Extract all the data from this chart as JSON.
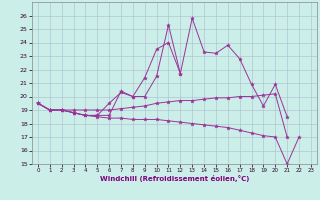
{
  "xlabel": "Windchill (Refroidissement éolien,°C)",
  "background_color": "#cceee8",
  "grid_color": "#aabbcc",
  "line_color": "#993399",
  "x_values": [
    0,
    1,
    2,
    3,
    4,
    5,
    6,
    7,
    8,
    9,
    10,
    11,
    12,
    13,
    14,
    15,
    16,
    17,
    18,
    19,
    20,
    21,
    22,
    23
  ],
  "series1": [
    19.5,
    19.0,
    19.0,
    18.8,
    18.6,
    18.6,
    19.5,
    20.3,
    20.0,
    20.0,
    21.5,
    25.3,
    21.7,
    25.8,
    23.3,
    23.2,
    23.8,
    22.8,
    20.9,
    19.3,
    20.9,
    18.5,
    null,
    null
  ],
  "series2": [
    19.5,
    19.0,
    19.0,
    18.8,
    18.6,
    18.6,
    18.6,
    20.4,
    20.0,
    21.4,
    23.5,
    24.0,
    21.7,
    null,
    null,
    null,
    null,
    null,
    null,
    null,
    null,
    null,
    null,
    null
  ],
  "series3": [
    19.5,
    19.0,
    19.0,
    19.0,
    19.0,
    19.0,
    19.0,
    19.1,
    19.2,
    19.3,
    19.5,
    19.6,
    19.7,
    19.7,
    19.8,
    19.9,
    19.9,
    20.0,
    20.0,
    20.1,
    20.2,
    17.0,
    null,
    null
  ],
  "series4": [
    19.5,
    19.0,
    19.0,
    18.8,
    18.6,
    18.5,
    18.4,
    18.4,
    18.3,
    18.3,
    18.3,
    18.2,
    18.1,
    18.0,
    17.9,
    17.8,
    17.7,
    17.5,
    17.3,
    17.1,
    17.0,
    15.0,
    17.0,
    null
  ],
  "ylim": [
    15,
    27
  ],
  "xlim": [
    -0.5,
    23.5
  ],
  "yticks": [
    15,
    16,
    17,
    18,
    19,
    20,
    21,
    22,
    23,
    24,
    25,
    26
  ],
  "xticks": [
    0,
    1,
    2,
    3,
    4,
    5,
    6,
    7,
    8,
    9,
    10,
    11,
    12,
    13,
    14,
    15,
    16,
    17,
    18,
    19,
    20,
    21,
    22,
    23
  ]
}
